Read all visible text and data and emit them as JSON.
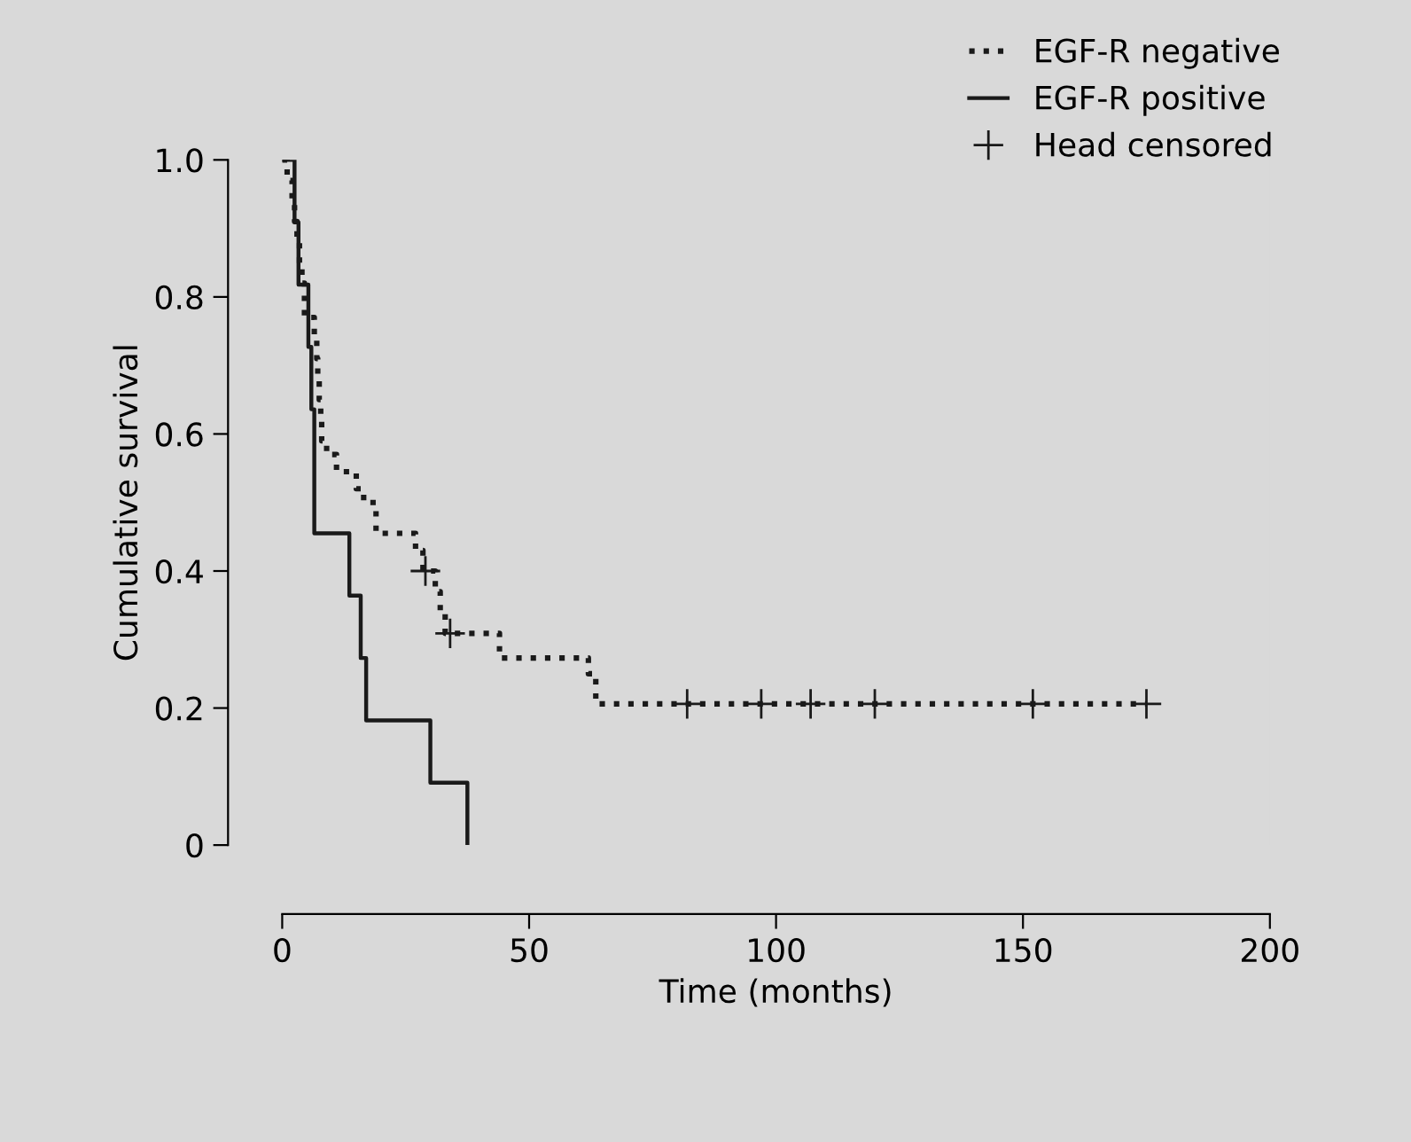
{
  "chart_data": {
    "type": "step",
    "xlabel": "Time (months)",
    "ylabel": "Cumulative survival",
    "xlim": [
      0,
      200
    ],
    "ylim": [
      0,
      1.0
    ],
    "xticks": [
      0,
      50,
      100,
      150,
      200
    ],
    "yticks": [
      {
        "value": 0,
        "label": "0"
      },
      0.2,
      0.4,
      0.6,
      0.8,
      {
        "value": 1.0,
        "label": "1.0"
      }
    ],
    "grid": false,
    "legend": "top right",
    "series": [
      {
        "name": "EGF-R negative",
        "color": "#1a1a1a",
        "line_style": "dotted",
        "x": [
          0,
          1,
          2,
          2.5,
          3,
          3.5,
          4,
          4.5,
          6.5,
          7,
          7.2,
          7.5,
          7.8,
          8,
          9,
          11,
          15,
          16.5,
          19,
          27,
          28.5,
          31,
          32,
          33,
          44,
          62,
          63.5,
          175
        ],
        "values": [
          1.0,
          0.97,
          0.94,
          0.91,
          0.88,
          0.85,
          0.82,
          0.77,
          0.74,
          0.71,
          0.68,
          0.65,
          0.62,
          0.59,
          0.57,
          0.545,
          0.52,
          0.5,
          0.455,
          0.43,
          0.4,
          0.37,
          0.34,
          0.309,
          0.273,
          0.25,
          0.206,
          0.206
        ]
      },
      {
        "name": "EGF-R positive",
        "color": "#1a1a1a",
        "line_style": "solid",
        "x": [
          0,
          2.5,
          3.3,
          5.3,
          5.9,
          6.5,
          13.6,
          15.9,
          17,
          30,
          37.5
        ],
        "values": [
          1.0,
          0.909,
          0.818,
          0.727,
          0.636,
          0.455,
          0.364,
          0.273,
          0.182,
          0.091,
          0
        ]
      },
      {
        "name": "Head censored",
        "type": "scatter",
        "color": "#1a1a1a",
        "marker": "cross",
        "x": [
          29,
          34,
          82,
          97,
          107,
          120,
          152,
          175
        ],
        "values": [
          0.4,
          0.309,
          0.206,
          0.206,
          0.206,
          0.206,
          0.206,
          0.206
        ]
      }
    ]
  }
}
